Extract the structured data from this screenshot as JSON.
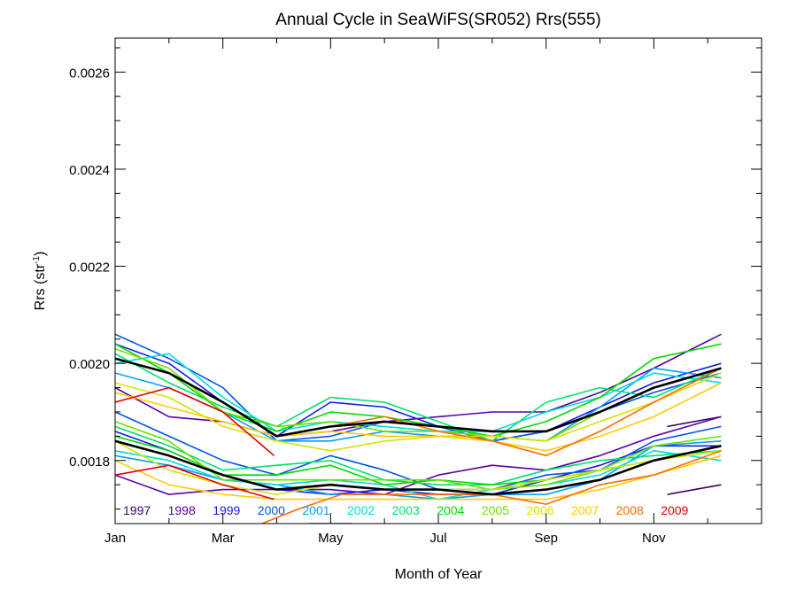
{
  "chart_data": {
    "type": "line",
    "title": "Annual Cycle in SeaWiFS(SR052) Rrs(555)",
    "xlabel": "Month of Year",
    "ylabel_main": "Rrs (str",
    "ylabel_sup": "-1",
    "ylabel_tail": ")",
    "xlim": [
      1,
      13
    ],
    "ylim": [
      0.00167,
      0.00267
    ],
    "xticks": [
      {
        "value": 1,
        "label": "Jan"
      },
      {
        "value": 3,
        "label": "Mar"
      },
      {
        "value": 5,
        "label": "May"
      },
      {
        "value": 7,
        "label": "Jul"
      },
      {
        "value": 9,
        "label": "Sep"
      },
      {
        "value": 11,
        "label": "Nov"
      }
    ],
    "yticks": [
      {
        "value": 0.0018,
        "label": "0.0018"
      },
      {
        "value": 0.002,
        "label": "0.0020"
      },
      {
        "value": 0.0022,
        "label": "0.0022"
      },
      {
        "value": 0.0024,
        "label": "0.0024"
      },
      {
        "value": 0.0026,
        "label": "0.0026"
      }
    ],
    "grid": false,
    "legend_placement": "bottom-inside",
    "legend": [
      {
        "label": "1997",
        "color": "#3a0068"
      },
      {
        "label": "1998",
        "color": "#5a00a8"
      },
      {
        "label": "1999",
        "color": "#1a1ae6"
      },
      {
        "label": "2000",
        "color": "#0055ee"
      },
      {
        "label": "2001",
        "color": "#00a0ff"
      },
      {
        "label": "2002",
        "color": "#00dcdc"
      },
      {
        "label": "2003",
        "color": "#00e070"
      },
      {
        "label": "2004",
        "color": "#00dc00"
      },
      {
        "label": "2005",
        "color": "#70e000"
      },
      {
        "label": "2006",
        "color": "#d4e400"
      },
      {
        "label": "2007",
        "color": "#ffcc00"
      },
      {
        "label": "2008",
        "color": "#ff6a00"
      },
      {
        "label": "2009",
        "color": "#e80000"
      }
    ],
    "series": [
      {
        "color": "#3a0068",
        "role": "year",
        "x": [
          11.25,
          12.25
        ],
        "y": [
          0.00173,
          0.00175
        ]
      },
      {
        "color": "#3a0068",
        "role": "year",
        "x": [
          11.25,
          12.25
        ],
        "y": [
          0.00187,
          0.00189
        ]
      },
      {
        "color": "#5a00a8",
        "role": "year",
        "x": [
          1,
          2,
          3,
          4,
          5,
          6,
          7,
          8,
          9,
          10,
          11,
          12.25
        ],
        "y": [
          0.00195,
          0.00189,
          0.00188,
          0.00185,
          0.00186,
          0.00188,
          0.00189,
          0.0019,
          0.0019,
          0.00194,
          0.00199,
          0.00206
        ]
      },
      {
        "color": "#5a00a8",
        "role": "year",
        "x": [
          1,
          2,
          3,
          4,
          5,
          6,
          7,
          8,
          9,
          10,
          11,
          12.25
        ],
        "y": [
          0.00177,
          0.00173,
          0.00174,
          0.00174,
          0.00174,
          0.00173,
          0.00177,
          0.00179,
          0.00178,
          0.00181,
          0.00185,
          0.00189
        ]
      },
      {
        "color": "#1a1ae6",
        "role": "year",
        "x": [
          1,
          2,
          3,
          4,
          5,
          6,
          7,
          8,
          9,
          10,
          11,
          12.25
        ],
        "y": [
          0.00204,
          0.002,
          0.00192,
          0.00185,
          0.00192,
          0.00191,
          0.00187,
          0.00184,
          0.00186,
          0.00191,
          0.00196,
          0.002
        ]
      },
      {
        "color": "#1a1ae6",
        "role": "year",
        "x": [
          1,
          2,
          3,
          4,
          5,
          6,
          7,
          8,
          9,
          10,
          11,
          12.25
        ],
        "y": [
          0.00186,
          0.00182,
          0.00177,
          0.00174,
          0.00173,
          0.00174,
          0.00173,
          0.00173,
          0.00176,
          0.00179,
          0.00183,
          0.00183
        ]
      },
      {
        "color": "#0055ee",
        "role": "year",
        "x": [
          1,
          2,
          3,
          4,
          5,
          6,
          7,
          8,
          9,
          10,
          11,
          12.25
        ],
        "y": [
          0.00206,
          0.00201,
          0.00195,
          0.00184,
          0.00185,
          0.00188,
          0.00187,
          0.00184,
          0.00186,
          0.0019,
          0.00194,
          0.00198
        ]
      },
      {
        "color": "#0055ee",
        "role": "year",
        "x": [
          1,
          2,
          3,
          4,
          5,
          6,
          7,
          8,
          9,
          10,
          11,
          12.25
        ],
        "y": [
          0.0019,
          0.00185,
          0.0018,
          0.00177,
          0.00181,
          0.00178,
          0.00174,
          0.00174,
          0.00177,
          0.00178,
          0.00184,
          0.00187
        ]
      },
      {
        "color": "#0055ee",
        "role": "year",
        "x": [
          4.6,
          5.4
        ],
        "y": [
          0.00167,
          0.00167
        ]
      },
      {
        "color": "#00a0ff",
        "role": "year",
        "x": [
          1,
          2,
          3,
          4,
          5,
          6,
          7,
          8,
          9,
          10,
          11,
          12.25
        ],
        "y": [
          0.00198,
          0.00195,
          0.0019,
          0.00184,
          0.00184,
          0.00186,
          0.00185,
          0.00185,
          0.00184,
          0.00191,
          0.00199,
          0.00197
        ]
      },
      {
        "color": "#00a0ff",
        "role": "year",
        "x": [
          1,
          2,
          3,
          4,
          5,
          6,
          7,
          8,
          9,
          10,
          11,
          12.25
        ],
        "y": [
          0.00181,
          0.00179,
          0.00176,
          0.00175,
          0.00173,
          0.00173,
          0.00172,
          0.00173,
          0.00173,
          0.00176,
          0.00183,
          0.00184
        ]
      },
      {
        "color": "#00dcdc",
        "role": "year",
        "x": [
          1,
          2,
          3,
          4,
          5,
          6,
          7,
          8,
          9,
          10,
          11,
          12.25
        ],
        "y": [
          0.002,
          0.00202,
          0.00193,
          0.00186,
          0.00188,
          0.00187,
          0.00186,
          0.00186,
          0.0019,
          0.00193,
          0.00198,
          0.00196
        ]
      },
      {
        "color": "#00dcdc",
        "role": "year",
        "x": [
          1,
          2,
          3,
          4,
          5,
          6,
          7,
          8,
          9,
          10,
          11,
          12.25
        ],
        "y": [
          0.00182,
          0.0018,
          0.00176,
          0.00175,
          0.00176,
          0.00175,
          0.00172,
          0.00174,
          0.00175,
          0.00177,
          0.00182,
          0.0018
        ]
      },
      {
        "color": "#00e070",
        "role": "year",
        "x": [
          1,
          2,
          3,
          4,
          5,
          6,
          7,
          8,
          9,
          10,
          11,
          12.25
        ],
        "y": [
          0.00202,
          0.00196,
          0.00191,
          0.00187,
          0.00193,
          0.00192,
          0.00188,
          0.00184,
          0.00192,
          0.00195,
          0.00193,
          0.00199
        ]
      },
      {
        "color": "#00e070",
        "role": "year",
        "x": [
          1,
          2,
          3,
          4,
          5,
          6,
          7,
          8,
          9,
          10,
          11,
          12.25
        ],
        "y": [
          0.00187,
          0.00183,
          0.00178,
          0.00179,
          0.0018,
          0.00176,
          0.00175,
          0.00175,
          0.00178,
          0.0018,
          0.00181,
          0.00182
        ]
      },
      {
        "color": "#00dc00",
        "role": "year",
        "x": [
          1,
          2,
          3,
          4,
          5,
          6,
          7,
          8,
          9,
          10,
          11,
          12.25
        ],
        "y": [
          0.00204,
          0.00198,
          0.0019,
          0.00186,
          0.0019,
          0.00189,
          0.00187,
          0.00185,
          0.00188,
          0.00193,
          0.00201,
          0.00204
        ]
      },
      {
        "color": "#00dc00",
        "role": "year",
        "x": [
          1,
          2,
          3,
          4,
          5,
          6,
          7,
          8,
          9,
          10,
          11,
          12.25
        ],
        "y": [
          0.00185,
          0.00182,
          0.00177,
          0.00177,
          0.00179,
          0.00175,
          0.00176,
          0.00175,
          0.00176,
          0.00178,
          0.0018,
          0.00183
        ]
      },
      {
        "color": "#70e000",
        "role": "year",
        "x": [
          1,
          2,
          3,
          4,
          5,
          6,
          7,
          8,
          9,
          10,
          11,
          12.25
        ],
        "y": [
          0.00203,
          0.00199,
          0.0019,
          0.00187,
          0.00188,
          0.00186,
          0.00186,
          0.00185,
          0.00184,
          0.0019,
          0.00195,
          0.00199
        ]
      },
      {
        "color": "#70e000",
        "role": "year",
        "x": [
          1,
          2,
          3,
          4,
          5,
          6,
          7,
          8,
          9,
          10,
          11,
          12.25
        ],
        "y": [
          0.00188,
          0.00184,
          0.00176,
          0.00176,
          0.00176,
          0.00176,
          0.00176,
          0.00174,
          0.00175,
          0.00178,
          0.00183,
          0.00185
        ]
      },
      {
        "color": "#d4e400",
        "role": "year",
        "x": [
          1,
          2,
          3,
          4,
          5,
          6,
          7,
          8,
          9,
          10,
          11,
          12.25
        ],
        "y": [
          0.00196,
          0.00193,
          0.00187,
          0.00184,
          0.00182,
          0.00184,
          0.00185,
          0.00185,
          0.00184,
          0.00188,
          0.00192,
          0.00198
        ]
      },
      {
        "color": "#d4e400",
        "role": "year",
        "x": [
          1,
          2,
          3,
          4,
          5,
          6,
          7,
          8,
          9,
          10,
          11,
          12.25
        ],
        "y": [
          0.00184,
          0.00178,
          0.00175,
          0.00173,
          0.00175,
          0.00174,
          0.00174,
          0.00174,
          0.00176,
          0.00178,
          0.0018,
          0.00182
        ]
      },
      {
        "color": "#ffcc00",
        "role": "year",
        "x": [
          1,
          2,
          3,
          4,
          5,
          6,
          7,
          8,
          9,
          10,
          11,
          12.25
        ],
        "y": [
          0.00194,
          0.00191,
          0.00188,
          0.00185,
          0.00186,
          0.00185,
          0.00185,
          0.00184,
          0.00182,
          0.00185,
          0.00189,
          0.00196
        ]
      },
      {
        "color": "#ffcc00",
        "role": "year",
        "x": [
          1,
          2,
          3,
          4,
          5,
          6,
          7,
          8,
          9,
          10,
          11,
          12.25
        ],
        "y": [
          0.0018,
          0.00175,
          0.00173,
          0.00172,
          0.00172,
          0.00172,
          0.00172,
          0.00172,
          0.00172,
          0.00174,
          0.00177,
          0.00181
        ]
      },
      {
        "color": "#ff6a00",
        "role": "year",
        "x": [
          4,
          5,
          6,
          7,
          8,
          9,
          10,
          11,
          12.25
        ],
        "y": [
          0.00185,
          0.00187,
          0.00189,
          0.00186,
          0.00184,
          0.00181,
          0.00186,
          0.00192,
          0.00199
        ]
      },
      {
        "color": "#ff6a00",
        "role": "year",
        "x": [
          3.5,
          4.4,
          5.2,
          6,
          7,
          8,
          9,
          10,
          11,
          12.25
        ],
        "y": [
          0.00166,
          0.0017,
          0.00173,
          0.00173,
          0.00173,
          0.00173,
          0.00171,
          0.00175,
          0.00177,
          0.00182
        ]
      },
      {
        "color": "#e80000",
        "role": "year",
        "x": [
          1,
          2,
          3,
          3.95
        ],
        "y": [
          0.00192,
          0.00195,
          0.0019,
          0.00181
        ]
      },
      {
        "color": "#e80000",
        "role": "year",
        "x": [
          1,
          2,
          3,
          3.95
        ],
        "y": [
          0.00177,
          0.00179,
          0.00175,
          0.00172
        ]
      },
      {
        "color": "#000000",
        "role": "mean",
        "x": [
          1,
          2,
          3,
          4,
          5,
          6,
          7,
          8,
          9,
          10,
          11,
          12.25
        ],
        "y": [
          0.00201,
          0.00198,
          0.00192,
          0.00185,
          0.00187,
          0.00188,
          0.00187,
          0.00186,
          0.00186,
          0.0019,
          0.00195,
          0.00199
        ]
      },
      {
        "color": "#000000",
        "role": "mean",
        "x": [
          1,
          2,
          3,
          4,
          5,
          6,
          7,
          8,
          9,
          10,
          11,
          12.25
        ],
        "y": [
          0.00184,
          0.00181,
          0.00177,
          0.00174,
          0.00175,
          0.00174,
          0.00174,
          0.00173,
          0.00174,
          0.00176,
          0.0018,
          0.00183
        ]
      }
    ]
  }
}
